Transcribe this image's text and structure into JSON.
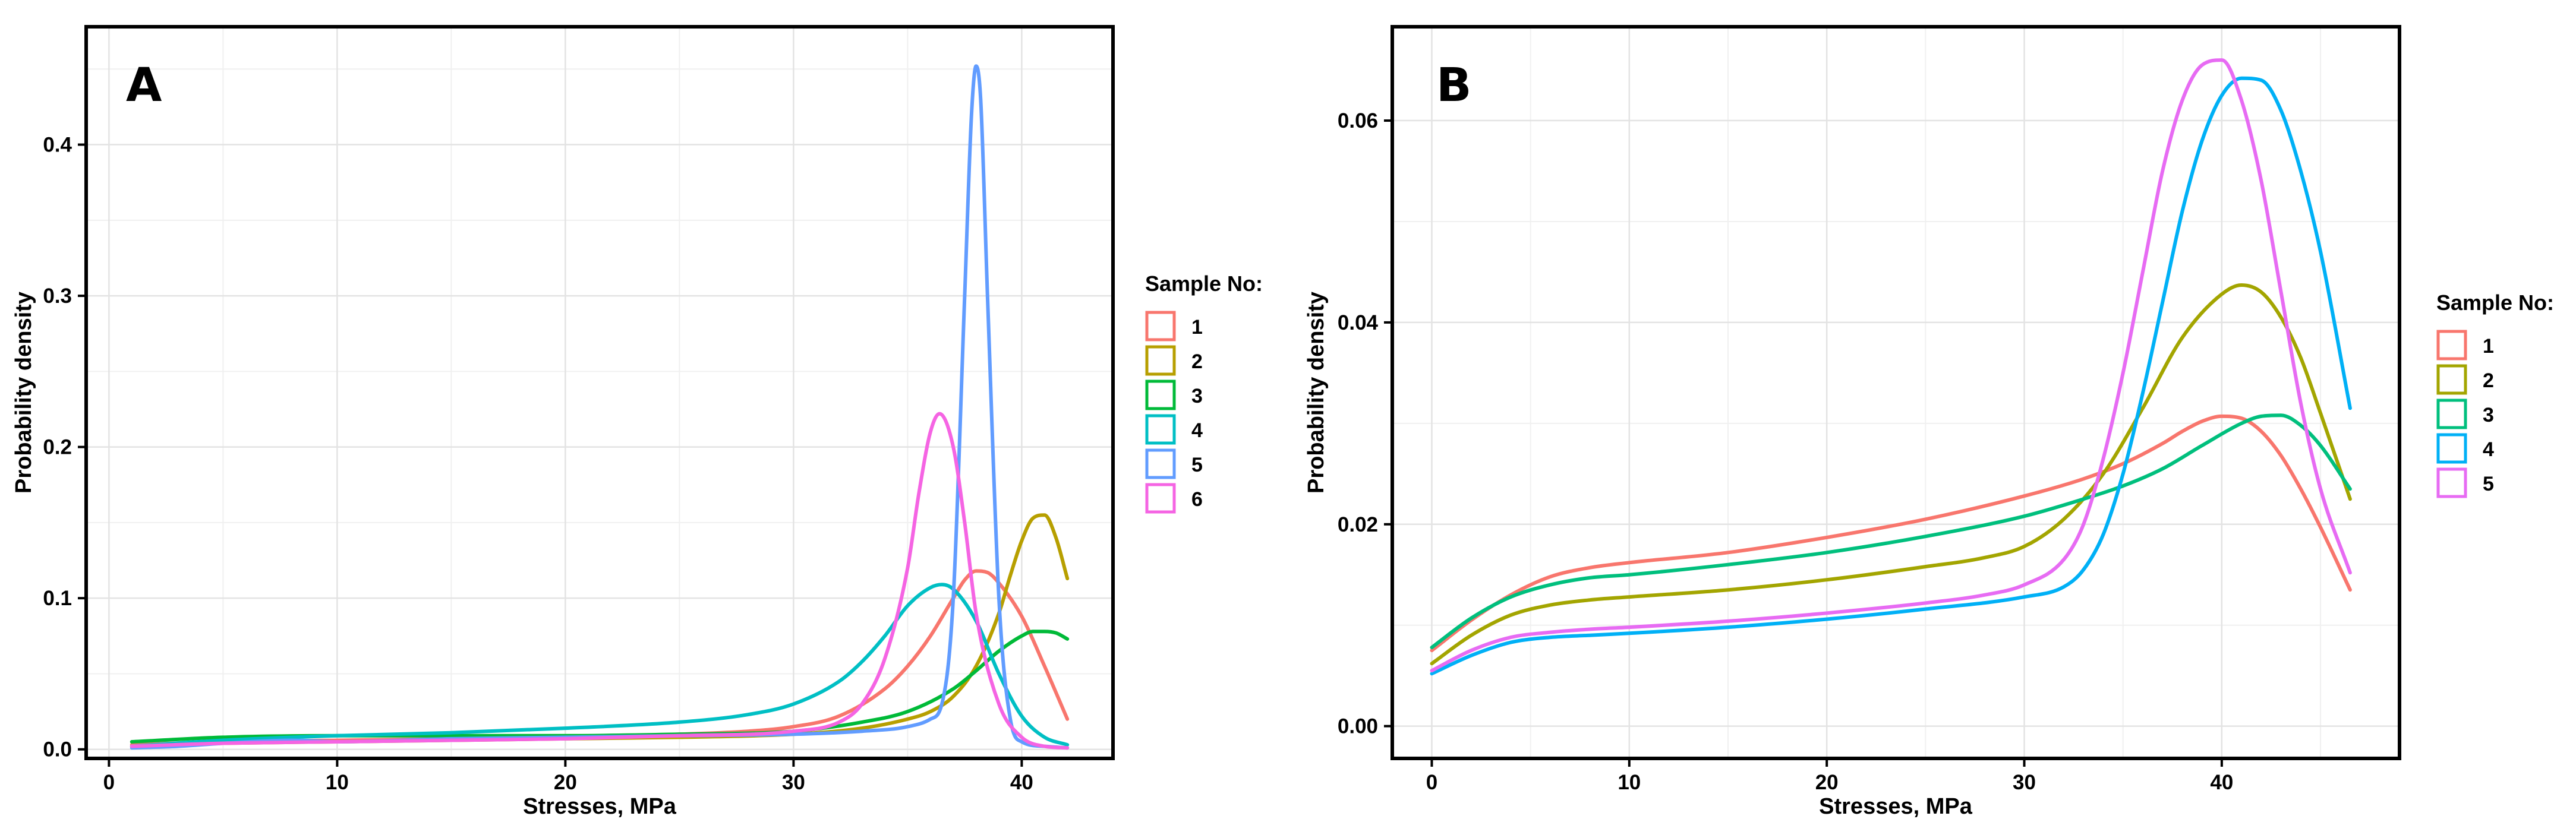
{
  "chart_data": [
    {
      "panel": "A",
      "type": "line",
      "xlabel": "Stresses, MPa",
      "ylabel": "Probability density",
      "xlim": [
        -1,
        44
      ],
      "ylim": [
        -0.006,
        0.478
      ],
      "xticks": [
        0,
        10,
        20,
        30,
        40
      ],
      "yticks": [
        0.0,
        0.1,
        0.2,
        0.3,
        0.4
      ],
      "ytick_labels": [
        "0.0",
        "0.1",
        "0.2",
        "0.3",
        "0.4"
      ],
      "grid": true,
      "legend": {
        "title": "Sample No:",
        "position": "right"
      },
      "series": [
        {
          "name": "1",
          "color": "#F8766D",
          "x": [
            1,
            5,
            10,
            15,
            20,
            25,
            28,
            30,
            32,
            34,
            35,
            36,
            37,
            37.5,
            38,
            38.5,
            39,
            40,
            41,
            42
          ],
          "y": [
            0.003,
            0.005,
            0.006,
            0.007,
            0.008,
            0.01,
            0.012,
            0.015,
            0.022,
            0.04,
            0.055,
            0.075,
            0.1,
            0.112,
            0.118,
            0.117,
            0.11,
            0.088,
            0.055,
            0.02
          ]
        },
        {
          "name": "2",
          "color": "#B79F00",
          "x": [
            1,
            5,
            10,
            15,
            20,
            25,
            30,
            33,
            35,
            36,
            37,
            38,
            39,
            39.5,
            40,
            40.5,
            41,
            41.5,
            42
          ],
          "y": [
            0.002,
            0.004,
            0.005,
            0.006,
            0.007,
            0.008,
            0.01,
            0.014,
            0.02,
            0.025,
            0.035,
            0.055,
            0.09,
            0.115,
            0.138,
            0.153,
            0.155,
            0.14,
            0.113
          ]
        },
        {
          "name": "3",
          "color": "#00BA38",
          "x": [
            1,
            5,
            10,
            15,
            20,
            25,
            30,
            33,
            35,
            37,
            38,
            39,
            40,
            40.5,
            41,
            41.5,
            42
          ],
          "y": [
            0.005,
            0.008,
            0.009,
            0.009,
            0.009,
            0.01,
            0.012,
            0.018,
            0.025,
            0.04,
            0.052,
            0.065,
            0.075,
            0.078,
            0.078,
            0.077,
            0.073
          ]
        },
        {
          "name": "4",
          "color": "#00BFC4",
          "x": [
            1,
            5,
            10,
            15,
            20,
            25,
            28,
            30,
            32,
            33,
            34,
            35,
            36,
            36.5,
            37,
            38,
            39,
            40,
            41,
            42
          ],
          "y": [
            0.002,
            0.006,
            0.009,
            0.011,
            0.014,
            0.018,
            0.023,
            0.03,
            0.045,
            0.058,
            0.075,
            0.095,
            0.107,
            0.109,
            0.106,
            0.085,
            0.05,
            0.022,
            0.008,
            0.003
          ]
        },
        {
          "name": "5",
          "color": "#619CFF",
          "x": [
            1,
            3,
            5,
            8,
            10,
            15,
            20,
            25,
            30,
            33,
            35,
            36,
            36.5,
            37,
            37.5,
            37.8,
            38,
            38.2,
            38.5,
            39,
            39.5,
            40,
            41,
            42
          ],
          "y": [
            0.001,
            0.002,
            0.004,
            0.006,
            0.005,
            0.007,
            0.008,
            0.009,
            0.01,
            0.012,
            0.015,
            0.02,
            0.03,
            0.1,
            0.3,
            0.42,
            0.452,
            0.43,
            0.3,
            0.1,
            0.02,
            0.005,
            0.002,
            0.001
          ]
        },
        {
          "name": "6",
          "color": "#F564E3",
          "x": [
            1,
            5,
            10,
            15,
            20,
            25,
            30,
            32,
            33,
            34,
            35,
            35.5,
            36,
            36.4,
            37,
            37.5,
            38,
            39,
            40,
            41,
            42
          ],
          "y": [
            0.002,
            0.004,
            0.005,
            0.006,
            0.007,
            0.009,
            0.012,
            0.018,
            0.03,
            0.06,
            0.12,
            0.17,
            0.21,
            0.222,
            0.2,
            0.15,
            0.09,
            0.03,
            0.008,
            0.002,
            0.001
          ]
        }
      ]
    },
    {
      "panel": "B",
      "type": "line",
      "xlabel": "Stresses, MPa",
      "ylabel": "Probability density",
      "xlim": [
        -2,
        49
      ],
      "ylim": [
        -0.0032,
        0.0693
      ],
      "xticks": [
        0,
        10,
        20,
        30,
        40
      ],
      "yticks": [
        0.0,
        0.02,
        0.04,
        0.06
      ],
      "ytick_labels": [
        "0.00",
        "0.02",
        "0.04",
        "0.06"
      ],
      "grid": true,
      "legend": {
        "title": "Sample No:",
        "position": "right"
      },
      "series": [
        {
          "name": "1",
          "color": "#F8766D",
          "x": [
            0,
            2,
            4,
            6,
            8,
            10,
            15,
            20,
            25,
            30,
            33,
            35,
            37,
            38,
            39,
            40,
            41,
            42,
            43,
            44,
            45,
            46.5
          ],
          "y": [
            0.0075,
            0.0105,
            0.013,
            0.0148,
            0.0157,
            0.0162,
            0.0172,
            0.0187,
            0.0205,
            0.0228,
            0.0245,
            0.026,
            0.028,
            0.0292,
            0.0302,
            0.0307,
            0.0305,
            0.0292,
            0.0268,
            0.0235,
            0.0197,
            0.0135
          ]
        },
        {
          "name": "2",
          "color": "#A3A500",
          "x": [
            0,
            2,
            4,
            6,
            8,
            10,
            15,
            20,
            25,
            28,
            30,
            32,
            34,
            36,
            38,
            40,
            41,
            42,
            43,
            44,
            45,
            46.5
          ],
          "y": [
            0.0062,
            0.009,
            0.011,
            0.012,
            0.0125,
            0.0128,
            0.0135,
            0.0145,
            0.0158,
            0.0167,
            0.0178,
            0.0205,
            0.025,
            0.0315,
            0.0385,
            0.0428,
            0.0437,
            0.043,
            0.0405,
            0.0365,
            0.031,
            0.0225
          ]
        },
        {
          "name": "3",
          "color": "#00BF7D",
          "x": [
            0,
            2,
            4,
            6,
            8,
            10,
            15,
            20,
            25,
            30,
            33,
            35,
            37,
            39,
            41,
            42,
            43,
            44,
            45,
            46.5
          ],
          "y": [
            0.0078,
            0.0107,
            0.0128,
            0.014,
            0.0147,
            0.015,
            0.016,
            0.0172,
            0.0188,
            0.0208,
            0.0225,
            0.0238,
            0.0255,
            0.0278,
            0.03,
            0.0307,
            0.0308,
            0.0298,
            0.0278,
            0.0235
          ]
        },
        {
          "name": "4",
          "color": "#00B0F6",
          "x": [
            0,
            2,
            4,
            6,
            8,
            10,
            15,
            20,
            25,
            30,
            32,
            33,
            34,
            35,
            36,
            37,
            38,
            39,
            40,
            41,
            42,
            43,
            44,
            45,
            46.5
          ],
          "y": [
            0.0052,
            0.007,
            0.0083,
            0.0088,
            0.009,
            0.0092,
            0.0098,
            0.0106,
            0.0116,
            0.0128,
            0.0138,
            0.0155,
            0.019,
            0.025,
            0.033,
            0.042,
            0.051,
            0.058,
            0.0625,
            0.0642,
            0.064,
            0.061,
            0.055,
            0.047,
            0.0315
          ]
        },
        {
          "name": "5",
          "color": "#E76BF3",
          "x": [
            0,
            2,
            4,
            6,
            8,
            10,
            15,
            20,
            25,
            28,
            30,
            32,
            33,
            34,
            35,
            36,
            37,
            38,
            39,
            40,
            41,
            42,
            43,
            44,
            45,
            46.5
          ],
          "y": [
            0.0055,
            0.0075,
            0.0088,
            0.0093,
            0.0096,
            0.0098,
            0.0104,
            0.0112,
            0.0122,
            0.013,
            0.014,
            0.0165,
            0.02,
            0.0265,
            0.035,
            0.045,
            0.055,
            0.062,
            0.0655,
            0.066,
            0.062,
            0.054,
            0.043,
            0.032,
            0.0235,
            0.0152
          ]
        }
      ]
    }
  ]
}
